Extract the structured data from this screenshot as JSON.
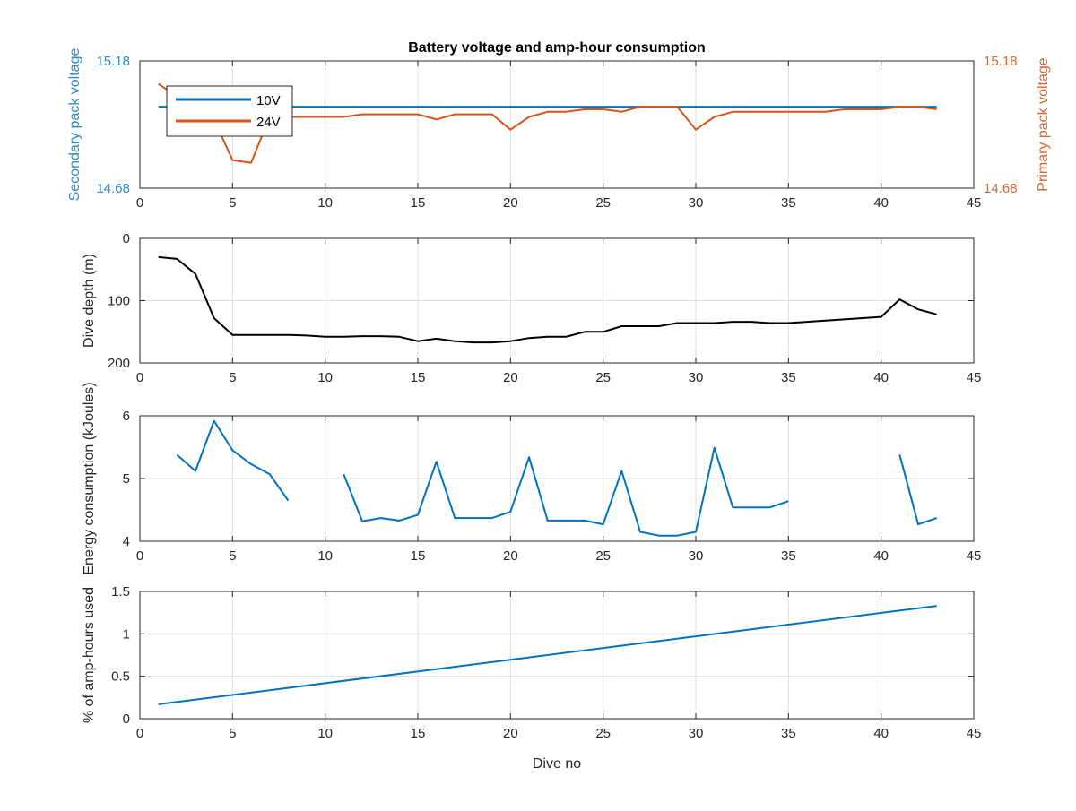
{
  "figure": {
    "title": "Battery voltage and amp-hour consumption"
  },
  "colors": {
    "blue": "#0072BD",
    "orange": "#D95319",
    "black": "#000000",
    "grid": "#dedede",
    "axis": "#262626",
    "blue_label": "#2a8fc9",
    "orange_label": "#d06a33"
  },
  "chart_data": [
    {
      "id": "voltage",
      "type": "line",
      "title": "Battery voltage and amp-hour consumption",
      "xlabel": "",
      "ylabel": "Secondary pack voltage",
      "ylabel_right": "Primary pack voltage",
      "xlim": [
        0,
        45
      ],
      "ylim": [
        14.68,
        15.18
      ],
      "ylim_right": [
        14.68,
        15.18
      ],
      "xticks": [
        0,
        5,
        10,
        15,
        20,
        25,
        30,
        35,
        40,
        45
      ],
      "yticks": [
        14.68,
        15.18
      ],
      "yticks_right": [
        14.68,
        15.18
      ],
      "grid": true,
      "legend_position": "top-left",
      "series": [
        {
          "name": "10V",
          "axis": "left",
          "x": [
            1,
            43
          ],
          "y": [
            15.0,
            15.0
          ]
        },
        {
          "name": "24V",
          "axis": "right",
          "x": [
            1,
            2,
            3,
            4,
            5,
            6,
            7,
            8,
            9,
            10,
            11,
            12,
            13,
            14,
            15,
            16,
            17,
            18,
            19,
            20,
            21,
            22,
            23,
            24,
            25,
            26,
            27,
            28,
            29,
            30,
            31,
            32,
            33,
            34,
            35,
            36,
            37,
            38,
            39,
            40,
            41,
            42,
            43
          ],
          "y": [
            15.09,
            15.04,
            14.99,
            14.95,
            14.79,
            14.78,
            14.96,
            14.96,
            14.96,
            14.96,
            14.96,
            14.97,
            14.97,
            14.97,
            14.97,
            14.95,
            14.97,
            14.97,
            14.97,
            14.91,
            14.96,
            14.98,
            14.98,
            14.99,
            14.99,
            14.98,
            15.0,
            15.0,
            15.0,
            14.91,
            14.96,
            14.98,
            14.98,
            14.98,
            14.98,
            14.98,
            14.98,
            14.99,
            14.99,
            14.99,
            15.0,
            15.0,
            14.99
          ]
        }
      ]
    },
    {
      "id": "depth",
      "type": "line",
      "xlabel": "",
      "ylabel": "Dive depth (m)",
      "xlim": [
        0,
        45
      ],
      "ylim": [
        0,
        200
      ],
      "y_reversed": true,
      "xticks": [
        0,
        5,
        10,
        15,
        20,
        25,
        30,
        35,
        40,
        45
      ],
      "yticks": [
        0,
        100,
        200
      ],
      "grid": true,
      "series": [
        {
          "x": [
            1,
            2,
            3,
            4,
            5,
            6,
            7,
            8,
            9,
            10,
            11,
            12,
            13,
            14,
            15,
            16,
            17,
            18,
            19,
            20,
            21,
            22,
            23,
            24,
            25,
            26,
            27,
            28,
            29,
            30,
            31,
            32,
            33,
            34,
            35,
            36,
            37,
            38,
            39,
            40,
            41,
            42,
            43
          ],
          "y": [
            30,
            33,
            57,
            128,
            155,
            155,
            155,
            155,
            156,
            158,
            158,
            157,
            157,
            158,
            165,
            161,
            165,
            167,
            167,
            165,
            160,
            158,
            158,
            150,
            150,
            141,
            141,
            141,
            136,
            136,
            136,
            134,
            134,
            136,
            136,
            134,
            132,
            130,
            128,
            126,
            98,
            114,
            122
          ]
        }
      ]
    },
    {
      "id": "energy",
      "type": "line",
      "xlabel": "",
      "ylabel": "Energy consumption (kJoules)",
      "xlim": [
        0,
        45
      ],
      "ylim": [
        4,
        6
      ],
      "xticks": [
        0,
        5,
        10,
        15,
        20,
        25,
        30,
        35,
        40,
        45
      ],
      "yticks": [
        4,
        5,
        6
      ],
      "grid": true,
      "series": [
        {
          "x": [
            2,
            3,
            4,
            5,
            6,
            7,
            8,
            null,
            11,
            12,
            13,
            14,
            15,
            16,
            17,
            18,
            19,
            20,
            21,
            22,
            23,
            24,
            25,
            26,
            27,
            28,
            29,
            30,
            31,
            32,
            33,
            34,
            35,
            null,
            41,
            42,
            43
          ],
          "y": [
            5.38,
            5.12,
            5.92,
            5.45,
            5.23,
            5.07,
            4.65,
            null,
            5.07,
            4.32,
            4.37,
            4.33,
            4.42,
            5.27,
            4.37,
            4.37,
            4.37,
            4.47,
            5.34,
            4.33,
            4.33,
            4.33,
            4.27,
            5.12,
            4.15,
            4.09,
            4.09,
            4.15,
            5.49,
            4.54,
            4.54,
            4.54,
            4.64,
            null,
            5.38,
            4.27,
            4.37
          ]
        }
      ]
    },
    {
      "id": "amphours",
      "type": "line",
      "xlabel": "Dive no",
      "ylabel": "% of amp-hours used",
      "xlim": [
        0,
        45
      ],
      "ylim": [
        0,
        1.5
      ],
      "xticks": [
        0,
        5,
        10,
        15,
        20,
        25,
        30,
        35,
        40,
        45
      ],
      "yticks": [
        0,
        0.5,
        1,
        1.5
      ],
      "grid": true,
      "series": [
        {
          "x": [
            1,
            43
          ],
          "y": [
            0.17,
            1.33
          ]
        }
      ]
    }
  ]
}
